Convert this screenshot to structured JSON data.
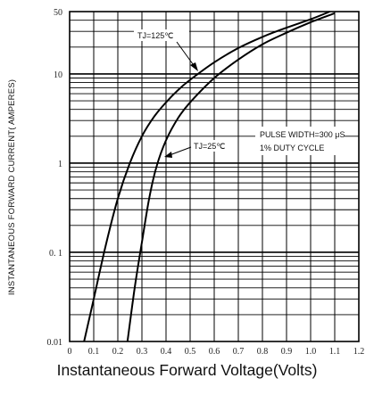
{
  "chart_data": {
    "type": "line",
    "title": "",
    "xlabel": "Instantaneous Forward Voltage(Volts)",
    "ylabel": "INSTANTANEOUS FORWARD CURRENT( AMPERES)",
    "xlim": [
      0,
      1.2
    ],
    "ylim": [
      0.01,
      50
    ],
    "y_scale": "log",
    "grid": true,
    "x_ticks": [
      "0",
      "0.1",
      "0.2",
      "0.3",
      "0.4",
      "0.5",
      "0.6",
      "0.7",
      "0.8",
      "0.9",
      "1.0",
      "1.1",
      "1.2"
    ],
    "y_ticks": [
      {
        "value": 0.01,
        "label": "0.01"
      },
      {
        "value": 0.1,
        "label": "0. 1"
      },
      {
        "value": 1,
        "label": "1"
      },
      {
        "value": 10,
        "label": "10"
      },
      {
        "value": 50,
        "label": "50"
      }
    ],
    "series": [
      {
        "name": "TJ=125℃",
        "x": [
          0.06,
          0.1,
          0.15,
          0.2,
          0.25,
          0.3,
          0.35,
          0.4,
          0.45,
          0.5,
          0.6,
          0.7,
          0.8,
          0.9,
          1.0,
          1.08
        ],
        "y": [
          0.01,
          0.03,
          0.12,
          0.4,
          1.0,
          2.0,
          3.3,
          4.8,
          6.6,
          8.6,
          13.5,
          19.5,
          26,
          33,
          41,
          50
        ]
      },
      {
        "name": "TJ=25℃",
        "x": [
          0.24,
          0.27,
          0.3,
          0.33,
          0.36,
          0.4,
          0.45,
          0.5,
          0.6,
          0.7,
          0.8,
          0.9,
          1.0,
          1.1
        ],
        "y": [
          0.01,
          0.04,
          0.13,
          0.4,
          0.9,
          1.8,
          3.2,
          4.8,
          9.0,
          14.5,
          21.5,
          29,
          38,
          48
        ]
      }
    ],
    "annotations": {
      "label_125": "TJ=125℃",
      "label_25": "TJ=25℃",
      "pulse_line1": "PULSE WIDTH=300 μS",
      "pulse_line2": "1% DUTY CYCLE"
    }
  }
}
